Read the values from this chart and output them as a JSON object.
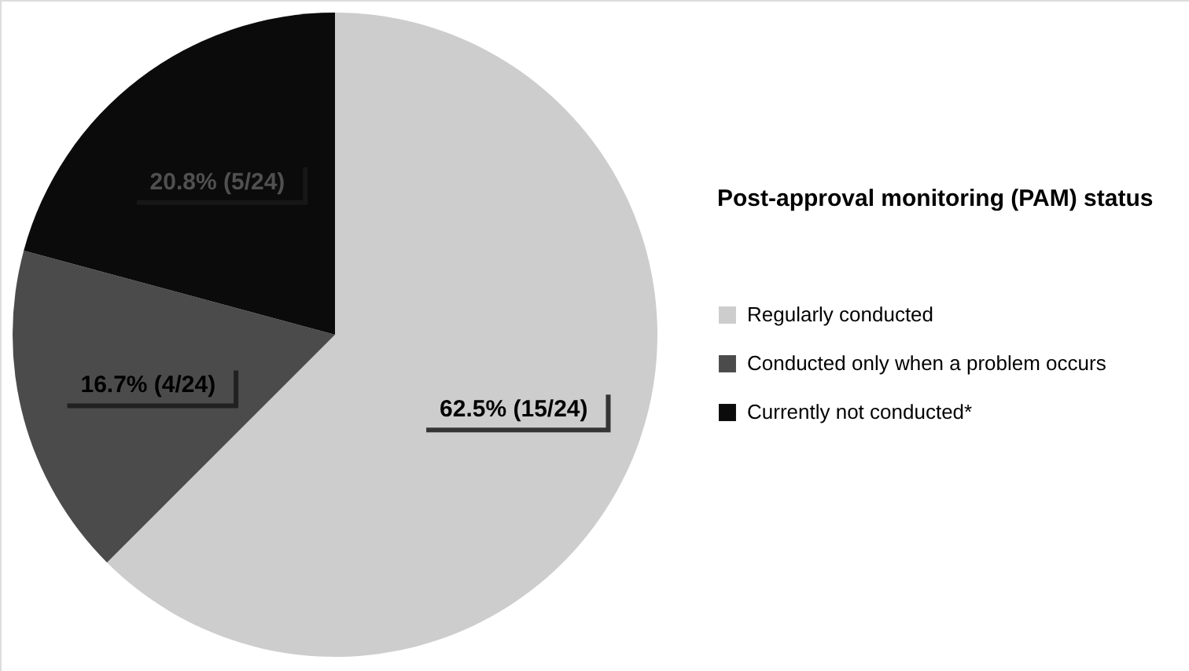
{
  "chart_data": {
    "type": "pie",
    "legend_title": "Post-approval monitoring (PAM) status",
    "categories": [
      "Regularly conducted",
      "Conducted only when a problem occurs",
      "Currently not conducted*"
    ],
    "values": [
      62.5,
      16.7,
      20.8
    ],
    "colors": [
      "#cdcdcd",
      "#4b4b4b",
      "#0b0b0b"
    ],
    "value_labels": [
      "62.5% (15/24)",
      "16.7% (4/24)",
      "20.8% (5/24)"
    ],
    "legend": "right"
  }
}
